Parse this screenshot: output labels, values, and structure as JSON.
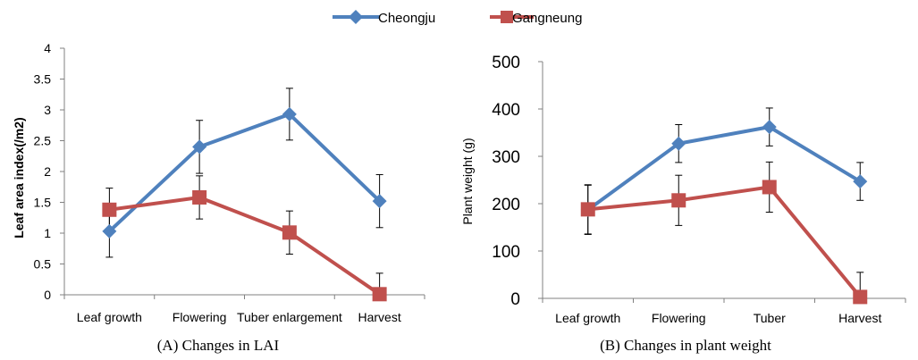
{
  "legend": [
    {
      "name": "Cheongju",
      "color": "#4F81BD",
      "marker": "diamond"
    },
    {
      "name": "Gangneung",
      "color": "#C0504D",
      "marker": "square"
    }
  ],
  "chart_data": [
    {
      "type": "line",
      "caption": "(A)  Changes  in  LAI",
      "ylabel": "Leaf area index(/m2)",
      "xlabel": "",
      "categories": [
        "Leaf growth",
        "Flowering",
        "Tuber enlargement",
        "Harvest"
      ],
      "ylim": [
        0,
        4
      ],
      "yticks": [
        "0",
        "0.5",
        "1",
        "1.5",
        "2",
        "2.5",
        "3",
        "3.5",
        "4"
      ],
      "grid": false,
      "series": [
        {
          "name": "Cheongju",
          "values": [
            1.03,
            2.4,
            2.93,
            1.52
          ],
          "errors": [
            0.42,
            0.43,
            0.42,
            0.43
          ]
        },
        {
          "name": "Gangneung",
          "values": [
            1.38,
            1.58,
            1.01,
            0.01
          ],
          "errors": [
            0.35,
            0.35,
            0.35,
            0.34
          ]
        }
      ]
    },
    {
      "type": "line",
      "caption": "(B)  Changes  in  plant  weight",
      "ylabel": "Plant weight (g)",
      "xlabel": "",
      "categories": [
        "Leaf growth",
        "Flowering",
        "Tuber",
        "Harvest"
      ],
      "ylim": [
        0,
        500
      ],
      "yticks": [
        "0",
        "100",
        "200",
        "300",
        "400",
        "500"
      ],
      "grid": false,
      "series": [
        {
          "name": "Cheongju",
          "values": [
            187,
            327,
            362,
            247
          ],
          "errors": [
            52,
            40,
            40,
            40
          ]
        },
        {
          "name": "Gangneung",
          "values": [
            188,
            207,
            235,
            3
          ],
          "errors": [
            52,
            53,
            53,
            52
          ]
        }
      ]
    }
  ]
}
